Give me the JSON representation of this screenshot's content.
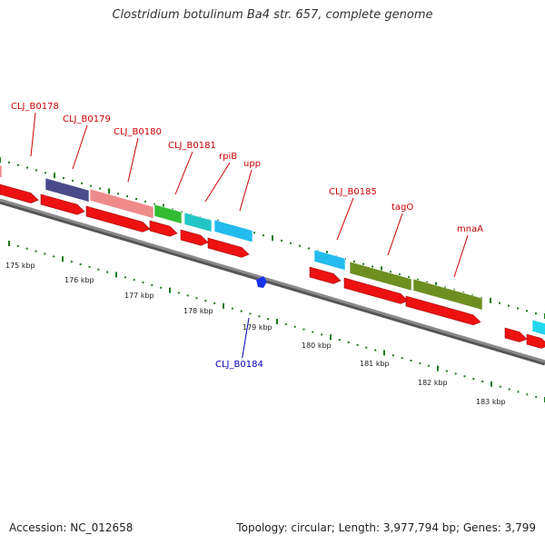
{
  "title": "Clostridium botulinum Ba4 str. 657, complete genome",
  "footer": {
    "accession_text": "Accession: NC_012658",
    "topology_text": "Topology: circular; Length: 3,977,794 bp; Genes: 3,799"
  },
  "colors": {
    "gene_arrow": "#ee1111",
    "upper_label": "#cc0000",
    "lower_label": "#0000bb",
    "tick_green": "#1a7a1a",
    "backbone": "#8a8a8a"
  },
  "genes_forward": [
    {
      "id": "CLJ_B0178",
      "color": "#ee8a8a"
    },
    {
      "id": "CLJ_B0179",
      "color": "#4a4a8a"
    },
    {
      "id": "CLJ_B0180",
      "color": "#ee8a8a"
    },
    {
      "id": "CLJ_B0181",
      "color": "#33bb33"
    },
    {
      "id": "rpiB",
      "color": "#22c6c6"
    },
    {
      "id": "upp",
      "color": "#22bbee"
    },
    {
      "id": "CLJ_B0185",
      "color": "#22bbee"
    },
    {
      "id": "tagO",
      "color": "#6e8e22"
    },
    {
      "id": "mnaA",
      "color": "#6e8e22"
    },
    {
      "id": "unlabeled",
      "color": "#22d6ee"
    }
  ],
  "genes_reverse": [
    {
      "id": "CLJ_B0184",
      "color": "#1a33ee"
    }
  ],
  "kbp_labels": [
    "175 kbp",
    "176 kbp",
    "177 kbp",
    "178 kbp",
    "179 kbp",
    "180 kbp",
    "181 kbp",
    "182 kbp",
    "183 kbp"
  ]
}
